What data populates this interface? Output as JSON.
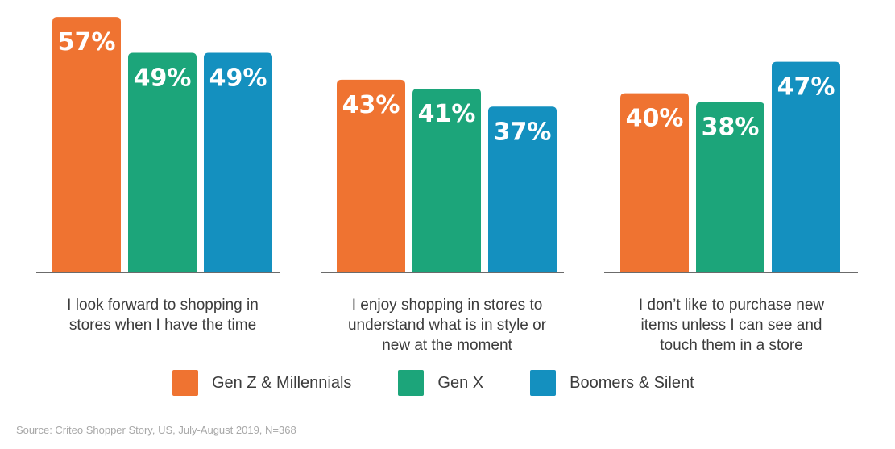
{
  "chart_data": {
    "type": "bar",
    "categories": [
      [
        "I look forward to shopping in",
        "stores when I have the time"
      ],
      [
        "I enjoy shopping in stores to",
        "understand what is in style or",
        "new at the moment"
      ],
      [
        "I don’t like to purchase new",
        "items unless I can see and",
        "touch them in a store"
      ]
    ],
    "series": [
      {
        "name": "Gen Z & Millennials",
        "color": "#ef7331",
        "values": [
          57,
          43,
          40
        ],
        "labels": [
          "57%",
          "43%",
          "40%"
        ]
      },
      {
        "name": "Gen X",
        "color": "#1ca57a",
        "values": [
          49,
          41,
          38
        ],
        "labels": [
          "49%",
          "41%",
          "38%"
        ]
      },
      {
        "name": "Boomers & Silent",
        "color": "#1490bf",
        "values": [
          49,
          37,
          47
        ],
        "labels": [
          "49%",
          "37%",
          "47%"
        ]
      }
    ],
    "ylim": [
      0,
      60
    ],
    "legend_position": "bottom",
    "grid": false
  },
  "source": "Source: Criteo Shopper Story, US, July-August 2019, N=368"
}
